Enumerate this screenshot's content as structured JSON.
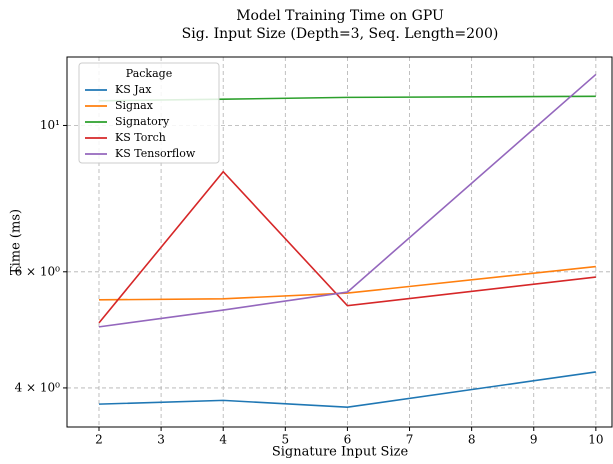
{
  "chart_data": {
    "type": "line",
    "title": "Model Training Time on GPU",
    "subtitle": "Sig. Input Size (Depth=3, Seq. Length=200)",
    "x_label": "Signature Input Size",
    "y_label": "Time (ms)",
    "x": [
      2,
      4,
      6,
      10
    ],
    "series": [
      {
        "name": "KS Jax",
        "color": "#1f77b4",
        "values": [
          3.78,
          3.83,
          3.74,
          4.23
        ]
      },
      {
        "name": "Signax",
        "color": "#ff7f0e",
        "values": [
          5.44,
          5.46,
          5.57,
          6.11
        ]
      },
      {
        "name": "Signatory",
        "color": "#2ca02c",
        "values": [
          10.9,
          10.96,
          11.03,
          11.07
        ]
      },
      {
        "name": "KS Torch",
        "color": "#d62728",
        "values": [
          5.02,
          8.51,
          5.33,
          5.89
        ]
      },
      {
        "name": "KS Tensorflow",
        "color": "#9467bd",
        "values": [
          4.95,
          5.25,
          5.59,
          11.95
        ]
      }
    ],
    "xlim": [
      1.485,
      10.26
    ],
    "xticks": [
      2,
      3,
      4,
      5,
      6,
      7,
      8,
      9,
      10
    ],
    "ylim": [
      3.49,
      12.7
    ],
    "ylog": true,
    "yticks": [
      {
        "value": 4,
        "label": "4 × 10⁰"
      },
      {
        "value": 6,
        "label": "6 × 10⁰"
      },
      {
        "value": 10,
        "label": "10¹"
      }
    ],
    "grid": true,
    "legend_title": "Package",
    "legend_loc": "upper-left"
  }
}
